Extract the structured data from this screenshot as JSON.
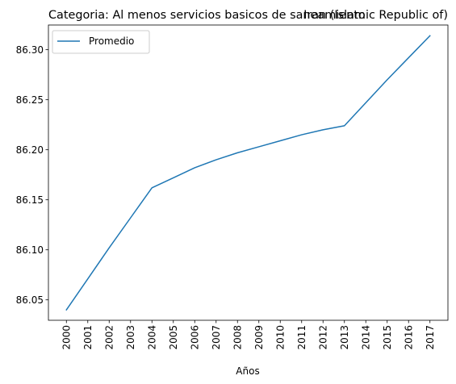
{
  "chart_data": {
    "type": "line",
    "title_left": "Categoria: Al menos servicios basicos de saneamiento",
    "title_right": "Iran (Islamic Republic of)",
    "xlabel": "Años",
    "ylabel": "",
    "x": [
      "2000",
      "2001",
      "2002",
      "2003",
      "2004",
      "2005",
      "2006",
      "2007",
      "2008",
      "2009",
      "2010",
      "2011",
      "2012",
      "2013",
      "2014",
      "2015",
      "2016",
      "2017"
    ],
    "series": [
      {
        "name": "Promedio",
        "color": "#1f77b4",
        "values": [
          86.04,
          86.071,
          86.102,
          86.132,
          86.162,
          86.172,
          86.182,
          86.19,
          86.197,
          86.203,
          86.209,
          86.215,
          86.22,
          86.224,
          86.247,
          86.27,
          86.292,
          86.314
        ]
      }
    ],
    "ylim": [
      86.0296,
      86.3247
    ],
    "yticks": [
      86.05,
      86.1,
      86.15,
      86.2,
      86.25,
      86.3
    ],
    "ytick_labels": [
      "86.05",
      "86.10",
      "86.15",
      "86.20",
      "86.25",
      "86.30"
    ],
    "grid": false,
    "legend_position": "top-left"
  }
}
